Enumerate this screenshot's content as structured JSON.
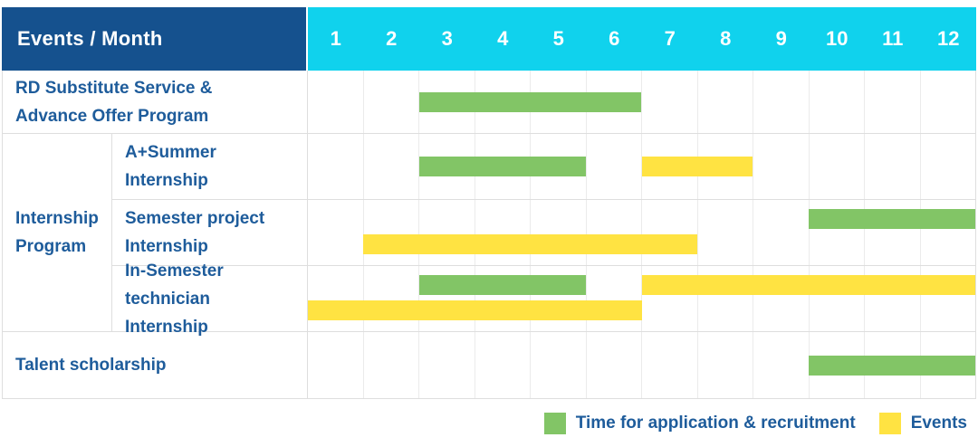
{
  "colors": {
    "header_navy": "#15518E",
    "header_cyan": "#10D2ED",
    "bar_green": "#82C566",
    "bar_yellow": "#FFE342",
    "label_blue": "#1E5C9B",
    "row_grid_line": "#DEDEDE",
    "month_grid_line": "#EBEBEB"
  },
  "chart_data": {
    "type": "gantt",
    "x": {
      "label_header": "Events / Month",
      "months": [
        1,
        2,
        3,
        4,
        5,
        6,
        7,
        8,
        9,
        10,
        11,
        12
      ]
    },
    "rows": [
      {
        "label": "RD Substitute Service & Advance Offer Program",
        "label_lines": [
          "RD Substitute Service &",
          "Advance Offer Program"
        ],
        "group": null,
        "bars": [
          {
            "color_key": "green",
            "series": "Time for application & recruitment",
            "start_month": 3,
            "end_month": 6,
            "line": "middle"
          }
        ]
      },
      {
        "label": "A+Summer Internship",
        "label_lines": [
          "A+Summer",
          "Internship"
        ],
        "group": "Internship Program",
        "group_lines": [
          "Internship",
          "Program"
        ],
        "bars": [
          {
            "color_key": "green",
            "series": "Time for application & recruitment",
            "start_month": 3,
            "end_month": 5,
            "line": "middle"
          },
          {
            "color_key": "yellow",
            "series": "Events",
            "start_month": 7,
            "end_month": 8,
            "line": "middle"
          }
        ]
      },
      {
        "label": "Semester project Internship",
        "label_lines": [
          "Semester project",
          "Internship"
        ],
        "group": "Internship Program",
        "group_lines": [
          "Internship",
          "Program"
        ],
        "bars": [
          {
            "color_key": "green",
            "series": "Time for application & recruitment",
            "start_month": 10,
            "end_month": 12,
            "line": "top"
          },
          {
            "color_key": "yellow",
            "series": "Events",
            "start_month": 2,
            "end_month": 7,
            "line": "bottom"
          }
        ]
      },
      {
        "label": "In-Semester technician Internship",
        "label_lines": [
          "In-Semester",
          "technician Internship"
        ],
        "group": "Internship Program",
        "group_lines": [
          "Internship",
          "Program"
        ],
        "bars": [
          {
            "color_key": "green",
            "series": "Time for application & recruitment",
            "start_month": 3,
            "end_month": 5,
            "line": "top"
          },
          {
            "color_key": "yellow",
            "series": "Events",
            "start_month": 7,
            "end_month": 12,
            "line": "top"
          },
          {
            "color_key": "yellow",
            "series": "Events",
            "start_month": 1,
            "end_month": 6,
            "line": "bottom"
          }
        ]
      },
      {
        "label": "Talent scholarship",
        "label_lines": [
          "Talent scholarship"
        ],
        "group": null,
        "bars": [
          {
            "color_key": "green",
            "series": "Time for application & recruitment",
            "start_month": 10,
            "end_month": 12,
            "line": "middle"
          }
        ]
      }
    ],
    "legend": [
      {
        "color_key": "green",
        "label": "Time for application & recruitment"
      },
      {
        "color_key": "yellow",
        "label": "Events"
      }
    ]
  }
}
